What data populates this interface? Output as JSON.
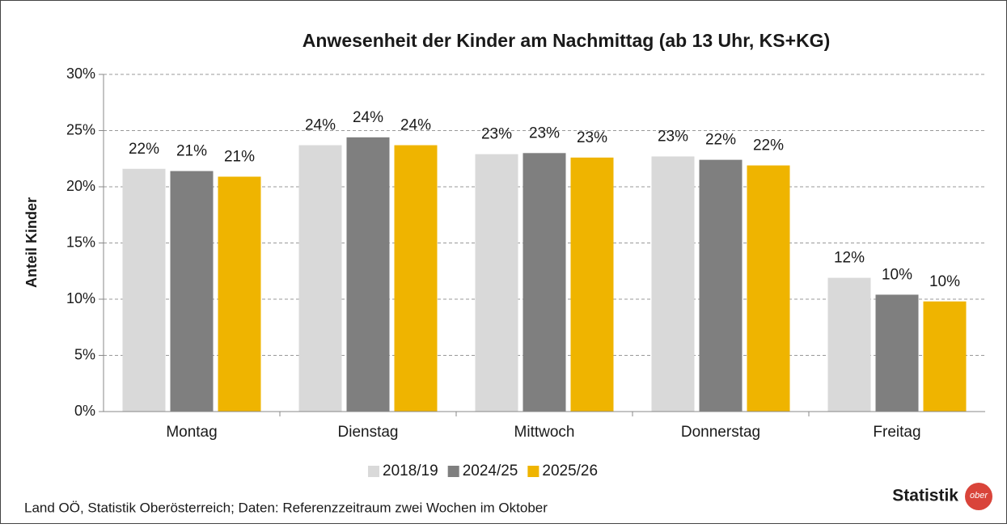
{
  "chart_data": {
    "type": "bar",
    "title": "Anwesenheit der Kinder am Nachmittag (ab 13 Uhr, KS+KG)",
    "y_label": "Anteil Kinder",
    "categories": [
      "Montag",
      "Dienstag",
      "Mittwoch",
      "Donnerstag",
      "Freitag"
    ],
    "series": [
      {
        "name": "2018/19",
        "color": "#d9d9d9",
        "values": [
          21.6,
          23.7,
          22.9,
          22.7,
          11.9
        ],
        "value_labels": [
          "22%",
          "24%",
          "23%",
          "23%",
          "12%"
        ]
      },
      {
        "name": "2024/25",
        "color": "#7f7f7f",
        "values": [
          21.4,
          24.4,
          23.0,
          22.4,
          10.4
        ],
        "value_labels": [
          "21%",
          "24%",
          "23%",
          "22%",
          "10%"
        ]
      },
      {
        "name": "2025/26",
        "color": "#efb400",
        "values": [
          20.9,
          23.7,
          22.6,
          21.9,
          9.8
        ],
        "value_labels": [
          "21%",
          "24%",
          "23%",
          "22%",
          "10%"
        ]
      }
    ],
    "ylim": [
      0,
      30
    ],
    "yticks": [
      {
        "value": 0,
        "label": "0%"
      },
      {
        "value": 5,
        "label": "5%"
      },
      {
        "value": 10,
        "label": "10%"
      },
      {
        "value": 15,
        "label": "15%"
      },
      {
        "value": 20,
        "label": "20%"
      },
      {
        "value": 25,
        "label": "25%"
      },
      {
        "value": 30,
        "label": "30%"
      }
    ],
    "grid": true,
    "legend": "bottom",
    "source": "Land OÖ, Statistik Oberösterreich; Daten: Referenzzeitraum zwei Wochen im Oktober",
    "logo_text": "Statistik",
    "logo_badge": "ober"
  }
}
